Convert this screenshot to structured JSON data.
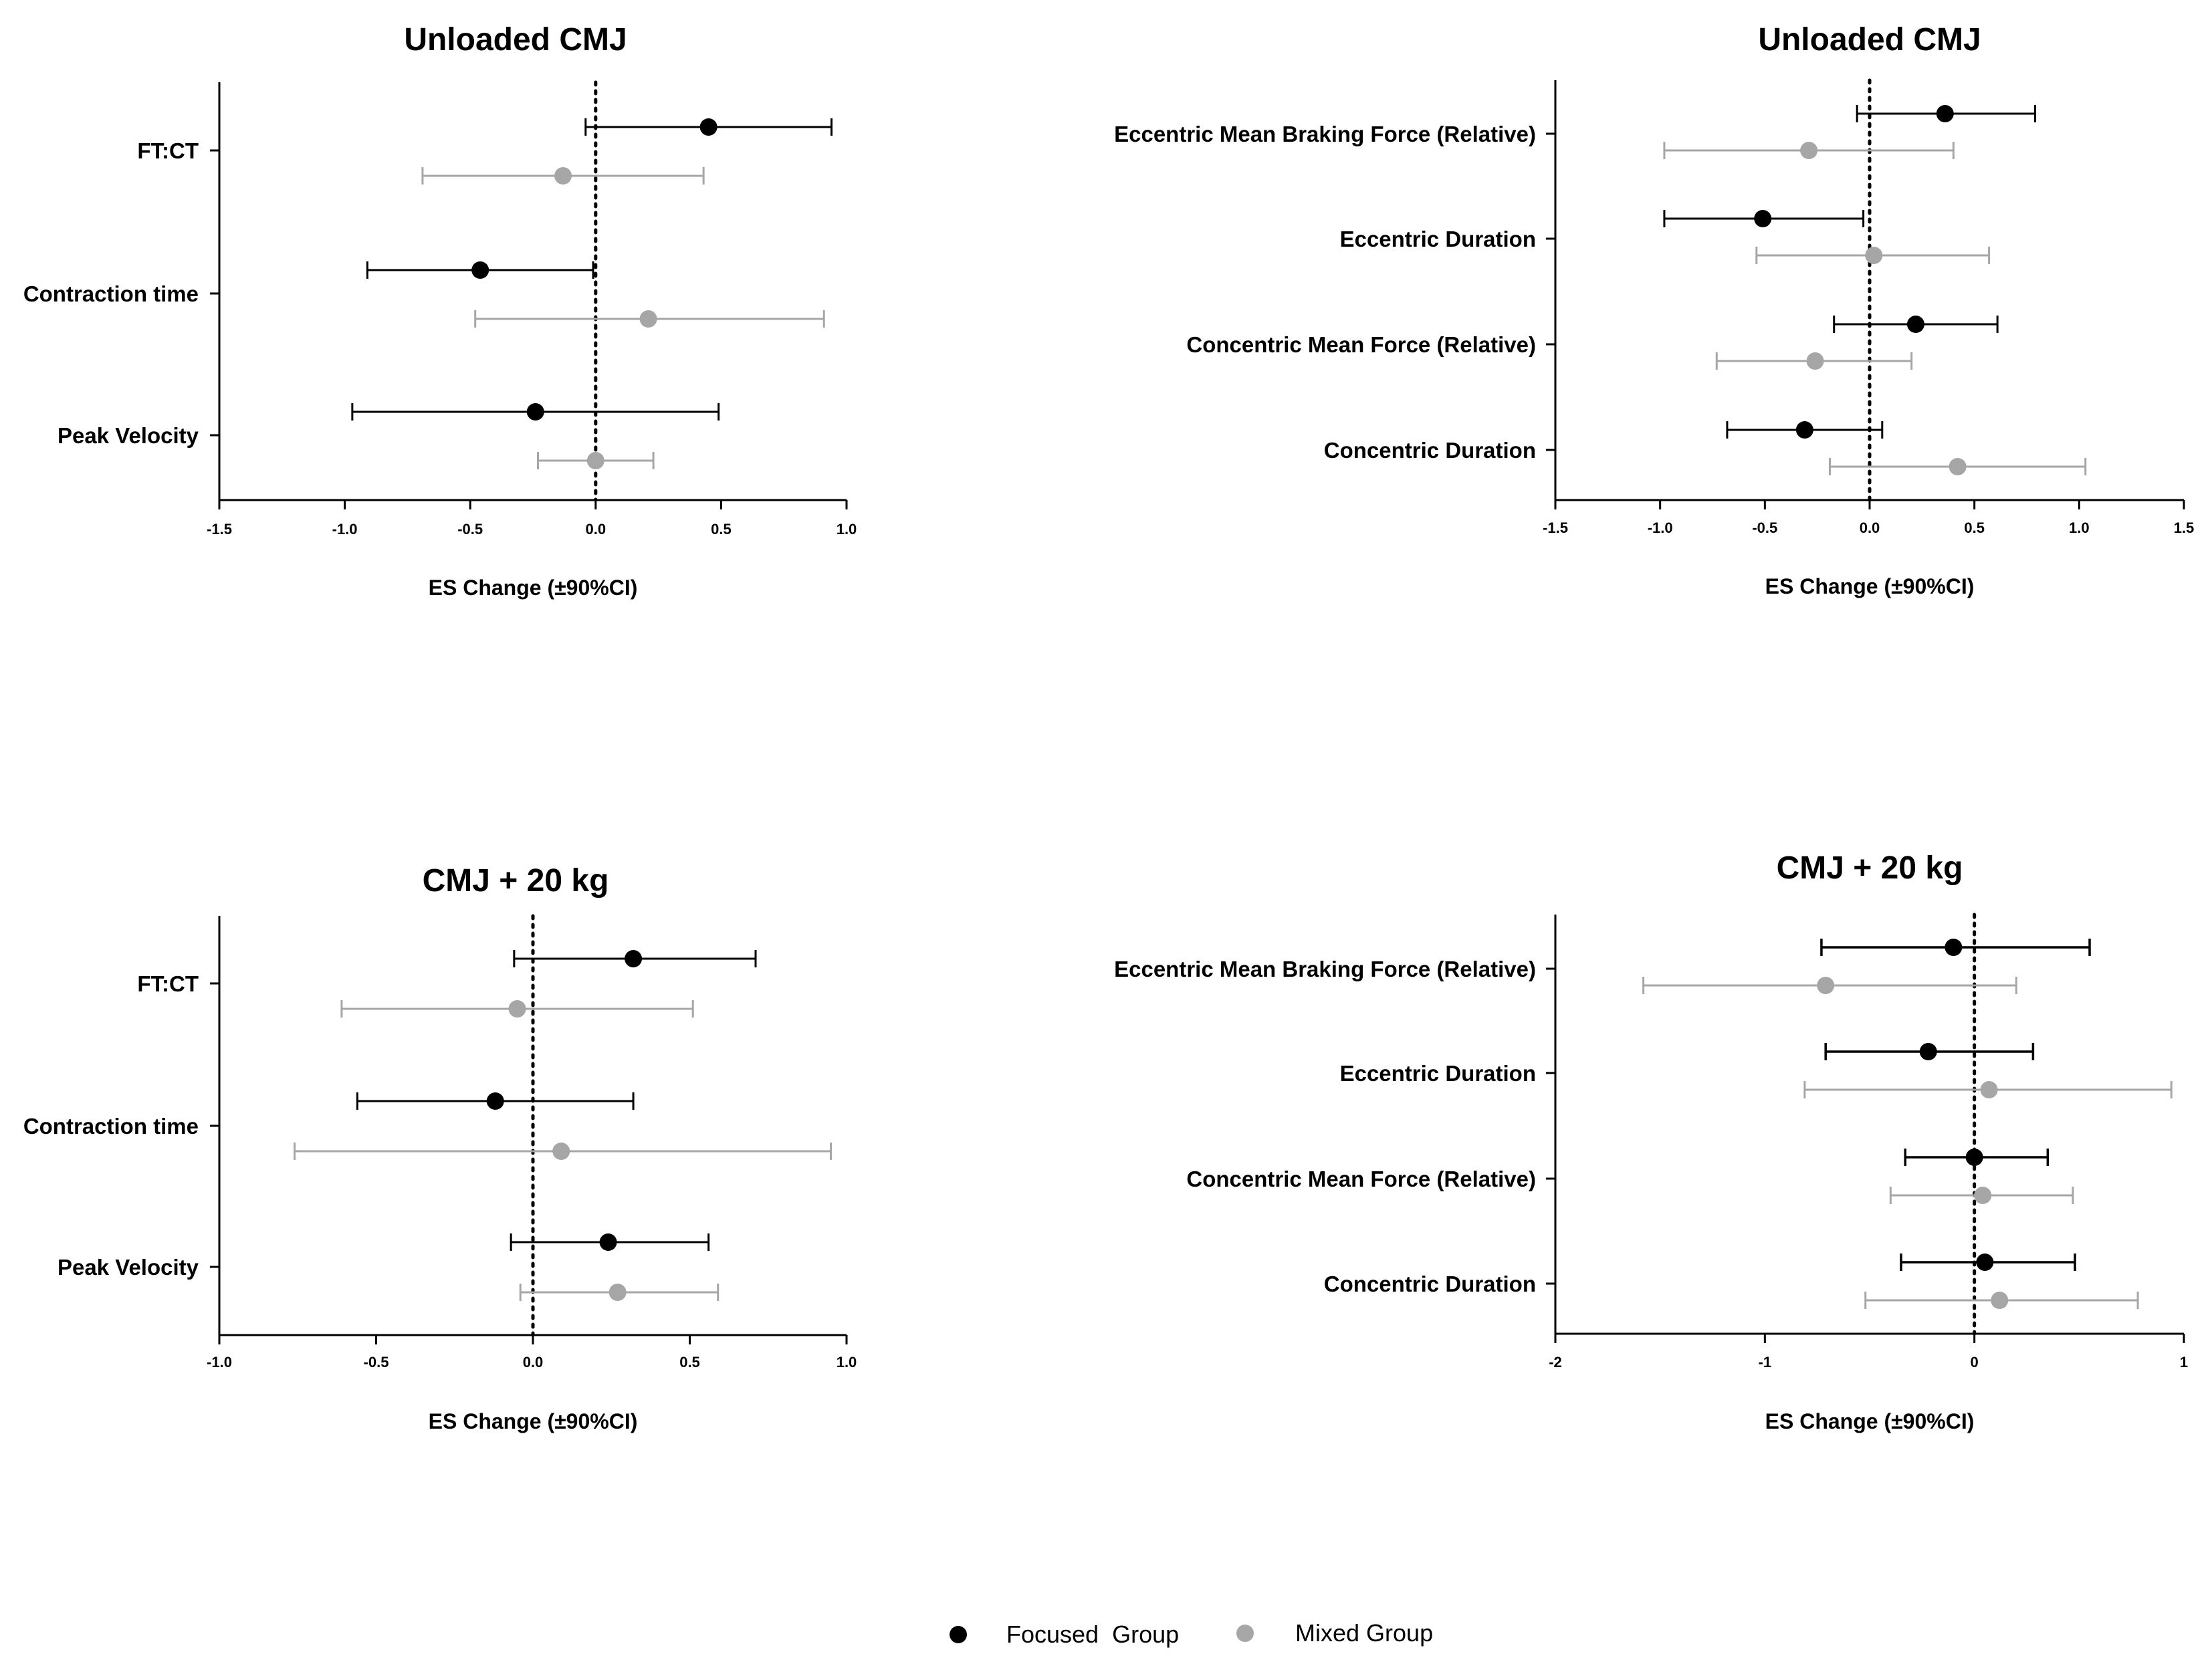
{
  "colors": {
    "focused": "#000000",
    "mixed": "#a6a6a6",
    "axis": "#000000"
  },
  "legend": [
    {
      "label": "Focused  Group",
      "color": "#000000"
    },
    {
      "label": "Mixed Group",
      "color": "#a6a6a6"
    }
  ],
  "chart_data": [
    {
      "type": "forest",
      "title": "Unloaded CMJ",
      "xlabel": "ES Change (±90%CI)",
      "xlim": [
        -1.5,
        1.0
      ],
      "xticks": [
        -1.5,
        -1.0,
        -0.5,
        0.0,
        0.5,
        1.0
      ],
      "tick_labels": [
        "-1.5",
        "-1.0",
        "-0.5",
        "0.0",
        "0.5",
        "1.0"
      ],
      "categories": [
        "FT:CT",
        "Contraction time",
        "Peak Velocity"
      ],
      "series": [
        {
          "name": "Focused  Group",
          "points": [
            {
              "est": 0.45,
              "lo": -0.04,
              "hi": 0.94
            },
            {
              "est": -0.46,
              "lo": -0.91,
              "hi": -0.01
            },
            {
              "est": -0.24,
              "lo": -0.97,
              "hi": 0.49
            }
          ]
        },
        {
          "name": "Mixed Group",
          "points": [
            {
              "est": -0.13,
              "lo": -0.69,
              "hi": 0.43
            },
            {
              "est": 0.21,
              "lo": -0.48,
              "hi": 0.91
            },
            {
              "est": 0.0,
              "lo": -0.23,
              "hi": 0.23
            }
          ]
        }
      ]
    },
    {
      "type": "forest",
      "title": "Unloaded CMJ",
      "xlabel": "ES Change (±90%CI)",
      "xlim": [
        -1.5,
        1.5
      ],
      "xticks": [
        -1.5,
        -1.0,
        -0.5,
        0.0,
        0.5,
        1.0,
        1.5
      ],
      "tick_labels": [
        "-1.5",
        "-1.0",
        "-0.5",
        "0.0",
        "0.5",
        "1.0",
        "1.5"
      ],
      "categories": [
        "Eccentric Mean Braking Force (Relative)",
        "Eccentric Duration",
        "Concentric Mean Force (Relative)",
        "Concentric Duration"
      ],
      "series": [
        {
          "name": "Focused  Group",
          "points": [
            {
              "est": 0.36,
              "lo": -0.06,
              "hi": 0.79
            },
            {
              "est": -0.51,
              "lo": -0.98,
              "hi": -0.03
            },
            {
              "est": 0.22,
              "lo": -0.17,
              "hi": 0.61
            },
            {
              "est": -0.31,
              "lo": -0.68,
              "hi": 0.06
            }
          ]
        },
        {
          "name": "Mixed Group",
          "points": [
            {
              "est": -0.29,
              "lo": -0.98,
              "hi": 0.4
            },
            {
              "est": 0.02,
              "lo": -0.54,
              "hi": 0.57
            },
            {
              "est": -0.26,
              "lo": -0.73,
              "hi": 0.2
            },
            {
              "est": 0.42,
              "lo": -0.19,
              "hi": 1.03
            }
          ]
        }
      ]
    },
    {
      "type": "forest",
      "title": "CMJ + 20 kg",
      "xlabel": "ES Change (±90%CI)",
      "xlim": [
        -1.0,
        1.0
      ],
      "xticks": [
        -1.0,
        -0.5,
        0.0,
        0.5,
        1.0
      ],
      "tick_labels": [
        "-1.0",
        "-0.5",
        "0.0",
        "0.5",
        "1.0"
      ],
      "categories": [
        "FT:CT",
        "Contraction time",
        "Peak Velocity"
      ],
      "series": [
        {
          "name": "Focused  Group",
          "points": [
            {
              "est": 0.32,
              "lo": -0.06,
              "hi": 0.71
            },
            {
              "est": -0.12,
              "lo": -0.56,
              "hi": 0.32
            },
            {
              "est": 0.24,
              "lo": -0.07,
              "hi": 0.56
            }
          ]
        },
        {
          "name": "Mixed Group",
          "points": [
            {
              "est": -0.05,
              "lo": -0.61,
              "hi": 0.51
            },
            {
              "est": 0.09,
              "lo": -0.76,
              "hi": 0.95
            },
            {
              "est": 0.27,
              "lo": -0.04,
              "hi": 0.59
            }
          ]
        }
      ]
    },
    {
      "type": "forest",
      "title": "CMJ + 20 kg",
      "xlabel": "ES Change (±90%CI)",
      "xlim": [
        -2,
        1
      ],
      "xticks": [
        -2,
        -1,
        0,
        1
      ],
      "tick_labels": [
        "-2",
        "-1",
        "0",
        "1"
      ],
      "categories": [
        "Eccentric Mean Braking Force (Relative)",
        "Eccentric Duration",
        "Concentric Mean Force (Relative)",
        "Concentric Duration"
      ],
      "series": [
        {
          "name": "Focused  Group",
          "points": [
            {
              "est": -0.1,
              "lo": -0.73,
              "hi": 0.55
            },
            {
              "est": -0.22,
              "lo": -0.71,
              "hi": 0.28
            },
            {
              "est": 0.0,
              "lo": -0.33,
              "hi": 0.35
            },
            {
              "est": 0.05,
              "lo": -0.35,
              "hi": 0.48
            }
          ]
        },
        {
          "name": "Mixed Group",
          "points": [
            {
              "est": -0.71,
              "lo": -1.58,
              "hi": 0.2
            },
            {
              "est": 0.07,
              "lo": -0.81,
              "hi": 0.94
            },
            {
              "est": 0.04,
              "lo": -0.4,
              "hi": 0.47
            },
            {
              "est": 0.12,
              "lo": -0.52,
              "hi": 0.78
            }
          ]
        }
      ]
    }
  ]
}
